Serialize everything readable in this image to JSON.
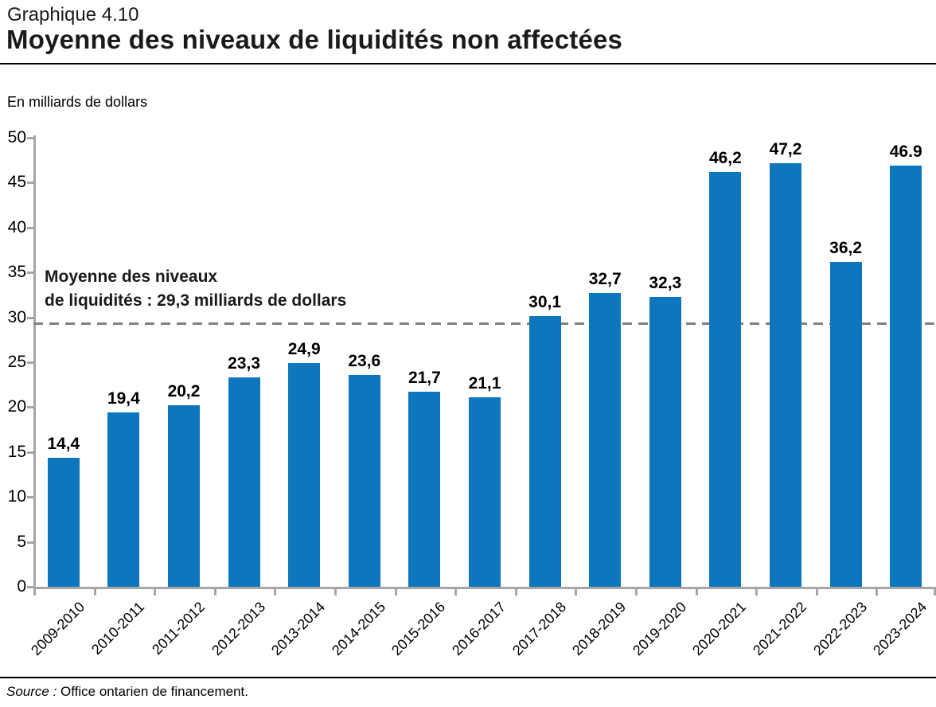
{
  "header": {
    "eyebrow": "Graphique 4.10",
    "title": "Moyenne des niveaux de liquidités non affectées",
    "units_label": "En milliards de dollars"
  },
  "chart_data": {
    "type": "bar",
    "title": "Moyenne des niveaux de liquidités non affectées",
    "xlabel": "",
    "ylabel": "En milliards de dollars",
    "categories": [
      "2009-2010",
      "2010-2011",
      "2011-2012",
      "2012-2013",
      "2013-2014",
      "2014-2015",
      "2015-2016",
      "2016-2017",
      "2017-2018",
      "2018-2019",
      "2019-2020",
      "2020-2021",
      "2021-2022",
      "2022-2023",
      "2023-2024"
    ],
    "values": [
      14.4,
      19.4,
      20.2,
      23.3,
      24.9,
      23.6,
      21.7,
      21.1,
      30.1,
      32.7,
      32.3,
      46.2,
      47.2,
      36.2,
      46.9
    ],
    "value_labels": [
      "14,4",
      "19,4",
      "20,2",
      "23,3",
      "24,9",
      "23,6",
      "21,7",
      "21,1",
      "30,1",
      "32,7",
      "32,3",
      "46,2",
      "47,2",
      "36,2",
      "46.9"
    ],
    "ylim": [
      0,
      50
    ],
    "yticks": [
      0,
      5,
      10,
      15,
      20,
      25,
      30,
      35,
      40,
      45,
      50
    ],
    "grid": false,
    "legend": "none",
    "bar_color": "#0e76bc",
    "axis_color": "#a6a6a6",
    "average_line": {
      "value": 29.3,
      "style": "dashed",
      "color": "#808080",
      "annotation_line1": "Moyenne des niveaux",
      "annotation_line2": "de liquidités : 29,3 milliards de dollars"
    }
  },
  "footer": {
    "source_prefix": "Source :",
    "source_text": " Office ontarien de financement."
  }
}
